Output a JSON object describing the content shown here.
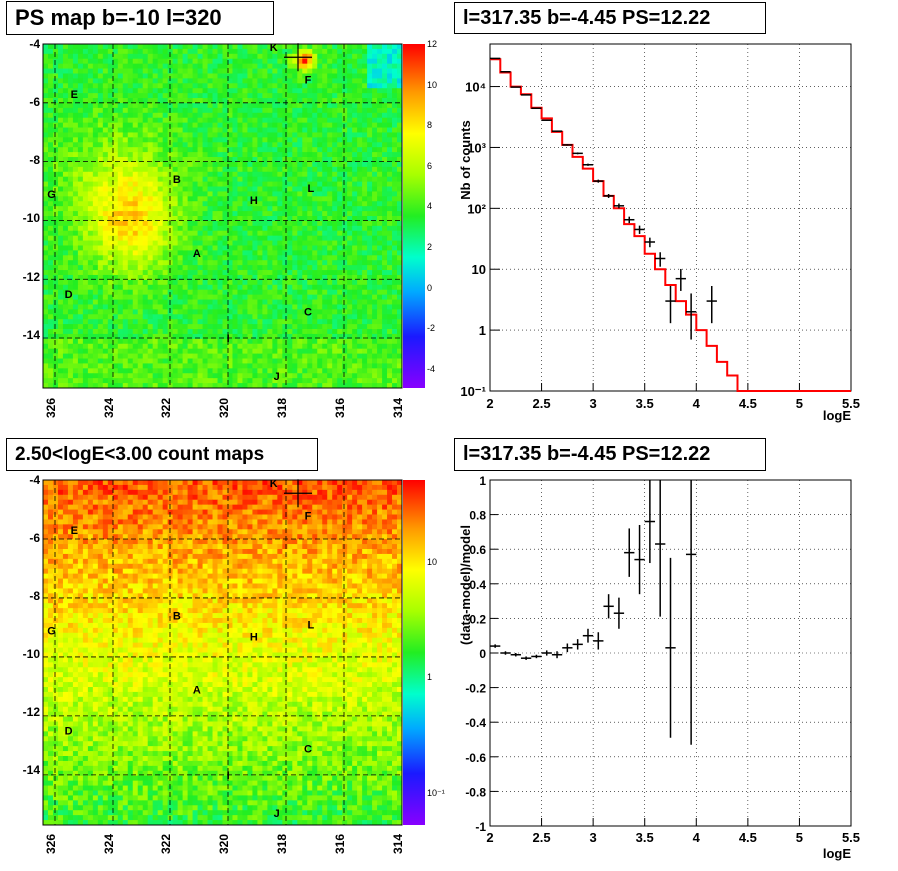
{
  "panels": {
    "ps_map": {
      "title": "PS map b=-10 l=320",
      "y_ticks": [
        "-4",
        "-6",
        "-8",
        "-10",
        "-12",
        "-14"
      ],
      "x_ticks": [
        "326",
        "324",
        "322",
        "320",
        "318",
        "316",
        "314"
      ],
      "colorbar_ticks": [
        "12",
        "10",
        "8",
        "6",
        "4",
        "2",
        "0",
        "-2",
        "-4"
      ]
    },
    "count_map": {
      "title": "2.50<logE<3.00 count maps",
      "y_ticks": [
        "-4",
        "-6",
        "-8",
        "-10",
        "-12",
        "-14"
      ],
      "x_ticks": [
        "326",
        "324",
        "322",
        "320",
        "318",
        "316",
        "314"
      ],
      "colorbar_ticks": [
        "10",
        "1",
        "10⁻¹"
      ]
    },
    "spectrum": {
      "title": "l=317.35 b=-4.45 PS=12.22",
      "xlabel": "logE",
      "ylabel": "Nb of counts"
    },
    "residual": {
      "title": "l=317.35 b=-4.45 PS=12.22",
      "xlabel": "logE",
      "ylabel": "(data-model)/model"
    },
    "source_labels": [
      "K",
      "F",
      "E",
      "G",
      "B",
      "L",
      "H",
      "A",
      "D",
      "C",
      "I",
      "J"
    ]
  },
  "chart_data": [
    {
      "type": "heatmap",
      "title": "PS map b=-10 l=320",
      "xlim": [
        326.3,
        313.7
      ],
      "ylim": [
        -15.7,
        -4.0
      ],
      "colorbar_range": [
        -5,
        12
      ],
      "sources": [
        {
          "label": "K",
          "l": 318.2,
          "b": -4.1
        },
        {
          "label": "F",
          "l": 317.0,
          "b": -5.2
        },
        {
          "label": "E",
          "l": 325.2,
          "b": -5.7
        },
        {
          "label": "G",
          "l": 326.0,
          "b": -9.1
        },
        {
          "label": "B",
          "l": 321.6,
          "b": -8.6
        },
        {
          "label": "L",
          "l": 316.9,
          "b": -8.9
        },
        {
          "label": "H",
          "l": 318.9,
          "b": -9.3
        },
        {
          "label": "A",
          "l": 320.9,
          "b": -11.1
        },
        {
          "label": "D",
          "l": 325.4,
          "b": -12.5
        },
        {
          "label": "C",
          "l": 317.0,
          "b": -13.1
        },
        {
          "label": "I",
          "l": 319.8,
          "b": -14.0
        },
        {
          "label": "J",
          "l": 318.1,
          "b": -15.3
        }
      ],
      "marker": {
        "l": 317.35,
        "b": -4.45
      }
    },
    {
      "type": "heatmap",
      "title": "2.50<logE<3.00 count maps",
      "xlim": [
        326.3,
        313.7
      ],
      "ylim": [
        -15.7,
        -4.0
      ],
      "colorbar_scale": "log",
      "colorbar_range": [
        0.05,
        30
      ]
    },
    {
      "type": "line",
      "title": "l=317.35 b=-4.45 PS=12.22",
      "xlabel": "logE",
      "ylabel": "Nb of counts",
      "xlim": [
        2,
        5.5
      ],
      "ylim": [
        0.1,
        50000
      ],
      "yscale": "log",
      "grid": true,
      "x_ticks": [
        "2",
        "2.5",
        "3",
        "3.5",
        "4",
        "4.5",
        "5",
        "5.5"
      ],
      "y_ticks": [
        "10⁻¹",
        "1",
        "10",
        "10²",
        "10³",
        "10⁴"
      ],
      "series": [
        {
          "kind": "model_step",
          "edges": [
            2.0,
            2.1,
            2.2,
            2.3,
            2.4,
            2.5,
            2.6,
            2.7,
            2.8,
            2.9,
            3.0,
            3.1,
            3.2,
            3.3,
            3.4,
            3.5,
            3.6,
            3.7,
            3.8,
            3.9,
            4.0,
            4.1,
            4.2,
            4.3,
            4.4,
            4.5,
            5.5
          ],
          "values": [
            28000,
            17000,
            10000,
            7500,
            4500,
            3000,
            1800,
            1100,
            700,
            450,
            280,
            160,
            100,
            55,
            35,
            18,
            10,
            5.5,
            3,
            1.8,
            1,
            0.55,
            0.3,
            0.18,
            0.1,
            0.1
          ]
        },
        {
          "kind": "data",
          "x": [
            2.05,
            2.15,
            2.25,
            2.35,
            2.45,
            2.55,
            2.65,
            2.75,
            2.85,
            2.95,
            3.05,
            3.15,
            3.25,
            3.35,
            3.45,
            3.55,
            3.65,
            3.75,
            3.85,
            3.95,
            4.15
          ],
          "y": [
            29000,
            17500,
            9800,
            7300,
            4400,
            2800,
            1850,
            1100,
            800,
            520,
            280,
            160,
            110,
            65,
            45,
            28,
            15,
            3,
            7,
            2,
            3
          ],
          "yerr_lo": [
            170,
            130,
            100,
            85,
            65,
            50,
            40,
            30,
            28,
            22,
            16,
            12,
            10,
            8,
            7,
            5,
            4,
            1.7,
            2.6,
            1.3,
            1.7
          ],
          "yerr_hi": [
            170,
            130,
            100,
            85,
            65,
            50,
            40,
            30,
            28,
            22,
            16,
            12,
            10,
            8,
            7,
            5,
            4,
            2.3,
            3.1,
            2.0,
            2.3
          ]
        }
      ]
    },
    {
      "type": "scatter",
      "title": "l=317.35 b=-4.45 PS=12.22",
      "xlabel": "logE",
      "ylabel": "(data-model)/model",
      "xlim": [
        2,
        5.5
      ],
      "ylim": [
        -1,
        1
      ],
      "grid": true,
      "x_ticks": [
        "2",
        "2.5",
        "3",
        "3.5",
        "4",
        "4.5",
        "5",
        "5.5"
      ],
      "y_ticks": [
        "1",
        "0.8",
        "0.6",
        "0.4",
        "0.2",
        "0",
        "-0.2",
        "-0.4",
        "-0.6",
        "-0.8",
        "-1"
      ],
      "series": [
        {
          "x": [
            2.05,
            2.15,
            2.25,
            2.35,
            2.45,
            2.55,
            2.65,
            2.75,
            2.85,
            2.95,
            3.05,
            3.15,
            3.25,
            3.35,
            3.45,
            3.55,
            3.65,
            3.75,
            3.95
          ],
          "y": [
            0.04,
            0.0,
            -0.01,
            -0.03,
            -0.02,
            0.0,
            -0.01,
            0.03,
            0.05,
            0.1,
            0.07,
            0.27,
            0.23,
            0.58,
            0.54,
            0.76,
            0.63,
            0.03,
            0.57
          ],
          "yerr": [
            0.01,
            0.01,
            0.01,
            0.01,
            0.01,
            0.015,
            0.02,
            0.025,
            0.03,
            0.04,
            0.05,
            0.07,
            0.09,
            0.14,
            0.2,
            0.24,
            0.42,
            0.52,
            1.1
          ]
        }
      ]
    }
  ]
}
